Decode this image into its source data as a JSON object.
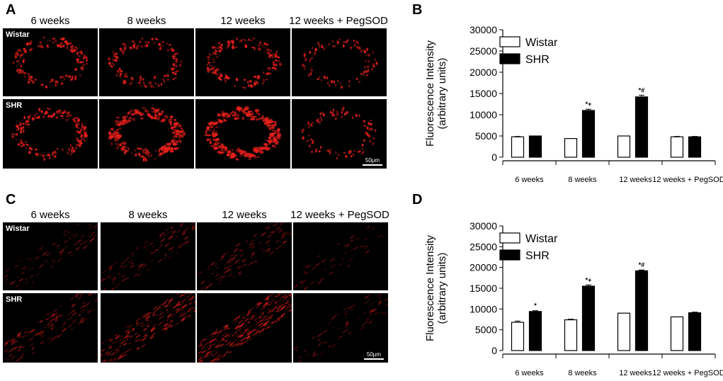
{
  "figure": {
    "panels": [
      {
        "letter": "A",
        "columns": [
          "6 weeks",
          "8 weeks",
          "12 weeks",
          "12 weeks + PegSOD"
        ],
        "rows": [
          "Wistar",
          "SHR"
        ],
        "scale_label": "50μm"
      },
      {
        "letter": "C",
        "columns": [
          "6 weeks",
          "8 weeks",
          "12 weeks",
          "12 weeks + PegSOD"
        ],
        "rows": [
          "Wistar",
          "SHR"
        ],
        "scale_label": "50μm"
      }
    ],
    "colors": {
      "fluorescence": "#e8201c",
      "bar_shr": "#000000",
      "bar_wistar": "#ffffff"
    }
  },
  "chart_data": [
    {
      "panel": "B",
      "type": "bar",
      "ylabel": "Fluorescence Intensity\n(arbitrary units)",
      "xlabel": "",
      "categories": [
        "6 weeks",
        "8 weeks",
        "12 weeks",
        "12 weeks + PegSOD"
      ],
      "ylim": [
        0,
        30000
      ],
      "yticks": [
        0,
        5000,
        10000,
        15000,
        20000,
        25000,
        30000
      ],
      "legend": {
        "placement": "top-left",
        "entries": [
          "Wistar",
          "SHR"
        ]
      },
      "series": [
        {
          "name": "Wistar",
          "values": [
            4800,
            4400,
            5000,
            4800
          ],
          "errors": [
            100,
            0,
            0,
            100
          ]
        },
        {
          "name": "SHR",
          "values": [
            5000,
            11000,
            14200,
            4800
          ],
          "errors": [
            0,
            300,
            400,
            100
          ]
        }
      ],
      "annotations": [
        "",
        "*+",
        "*#",
        ""
      ]
    },
    {
      "panel": "D",
      "type": "bar",
      "ylabel": "Fluorescence Intensity\n(arbitrary units)",
      "xlabel": "",
      "categories": [
        "6 weeks",
        "8 weeks",
        "12 weeks",
        "12 weeks + PegSOD"
      ],
      "ylim": [
        0,
        30000
      ],
      "yticks": [
        0,
        5000,
        10000,
        15000,
        20000,
        25000,
        30000
      ],
      "legend": {
        "placement": "top-left",
        "entries": [
          "Wistar",
          "SHR"
        ]
      },
      "series": [
        {
          "name": "Wistar",
          "values": [
            6800,
            7400,
            9000,
            8100
          ],
          "errors": [
            300,
            150,
            0,
            0
          ]
        },
        {
          "name": "SHR",
          "values": [
            9400,
            15500,
            19200,
            9100
          ],
          "errors": [
            200,
            300,
            200,
            150
          ]
        }
      ],
      "annotations": [
        "*",
        "*+",
        "*#",
        ""
      ]
    }
  ]
}
